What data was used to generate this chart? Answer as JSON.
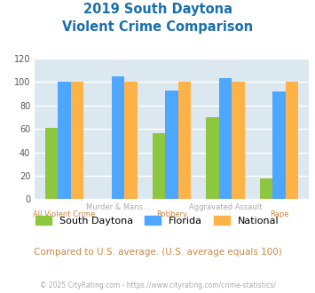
{
  "title_line1": "2019 South Daytona",
  "title_line2": "Violent Crime Comparison",
  "x_labels_top": [
    "",
    "Murder & Mans...",
    "",
    "Aggravated Assault",
    ""
  ],
  "x_labels_bottom": [
    "All Violent Crime",
    "",
    "Robbery",
    "",
    "Rape"
  ],
  "south_daytona": [
    61,
    0,
    56,
    70,
    18
  ],
  "florida": [
    100,
    105,
    93,
    103,
    92
  ],
  "national": [
    100,
    100,
    100,
    100,
    100
  ],
  "bar_colors": {
    "south_daytona": "#8dc63f",
    "florida": "#4da6ff",
    "national": "#ffb347"
  },
  "ylim": [
    0,
    120
  ],
  "yticks": [
    0,
    20,
    40,
    60,
    80,
    100,
    120
  ],
  "title_color": "#1a6faf",
  "bg_color": "#dce8f0",
  "subtitle_text": "Compared to U.S. average. (U.S. average equals 100)",
  "footer_text": "© 2025 CityRating.com - https://www.cityrating.com/crime-statistics/",
  "x_label_top_color": "#aaaaaa",
  "x_label_bottom_color": "#cc8844"
}
